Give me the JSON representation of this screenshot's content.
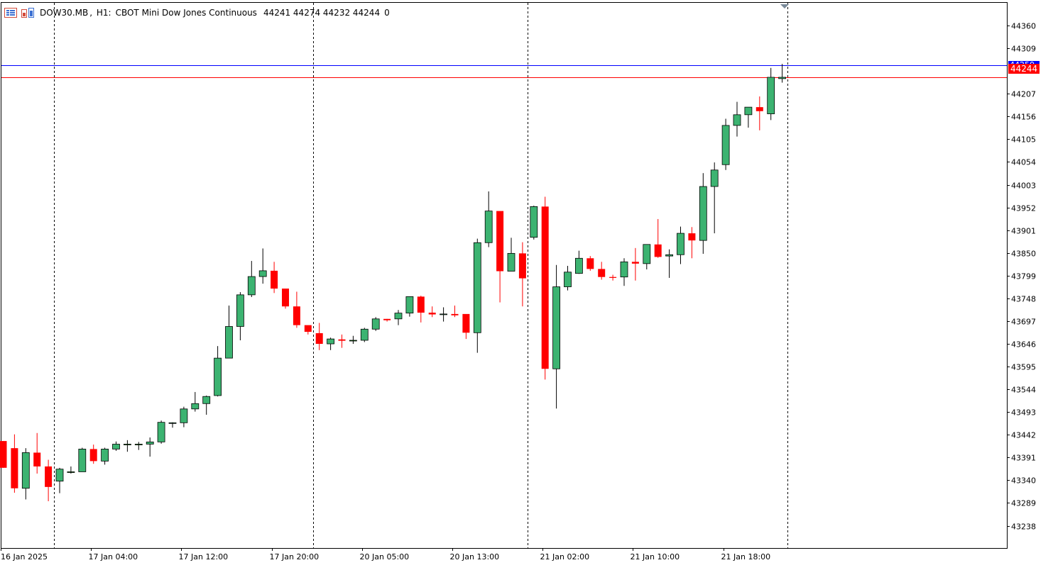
{
  "header": {
    "symbol": "DOW30.MB",
    "timeframe": "H1:",
    "description": "CBOT Mini Dow Jones Continuous",
    "ohlc": "44241 44274 44232 44244",
    "volume": "0",
    "icons": [
      "chart-list-icon",
      "one-click-trading-icon"
    ]
  },
  "colors": {
    "up": "#3cb371",
    "down": "#ff0000",
    "ask_line": "#0000ff",
    "bid_line": "#ff0000",
    "price_label_bg": "#ff0000",
    "grid": "#000000",
    "doji": "#00cc00"
  },
  "chart_data": {
    "type": "candlestick",
    "symbol": "DOW30.MB",
    "timeframe": "H1",
    "ylim": [
      43188,
      44411
    ],
    "y_ticks": [
      "44360",
      "44309",
      "44207",
      "44156",
      "44105",
      "44054",
      "44003",
      "43952",
      "43901",
      "43850",
      "43799",
      "43748",
      "43697",
      "43646",
      "43595",
      "43544",
      "43493",
      "43442",
      "43391",
      "43340",
      "43289",
      "43238"
    ],
    "x_ticks": [
      "16 Jan 2025",
      "17 Jan 04:00",
      "17 Jan 12:00",
      "17 Jan 20:00",
      "20 Jan 05:00",
      "20 Jan 13:00",
      "21 Jan 02:00",
      "21 Jan 10:00",
      "21 Jan 18:00"
    ],
    "current_price": "44244",
    "ask_price": "44250",
    "bid_price": 44244,
    "session_separators": [
      4.5,
      27.5,
      46.5,
      69.5
    ],
    "candles": [
      {
        "o": 43428,
        "h": 43428,
        "l": 43368,
        "c": 43368
      },
      {
        "o": 43412,
        "h": 43443,
        "l": 43312,
        "c": 43322
      },
      {
        "o": 43322,
        "h": 43412,
        "l": 43297,
        "c": 43402
      },
      {
        "o": 43402,
        "h": 43446,
        "l": 43355,
        "c": 43371
      },
      {
        "o": 43371,
        "h": 43386,
        "l": 43293,
        "c": 43325
      },
      {
        "o": 43338,
        "h": 43368,
        "l": 43311,
        "c": 43365
      },
      {
        "o": 43359,
        "h": 43371,
        "l": 43355,
        "c": 43359
      },
      {
        "o": 43359,
        "h": 43413,
        "l": 43359,
        "c": 43410
      },
      {
        "o": 43410,
        "h": 43420,
        "l": 43377,
        "c": 43383
      },
      {
        "o": 43383,
        "h": 43413,
        "l": 43375,
        "c": 43410
      },
      {
        "o": 43410,
        "h": 43427,
        "l": 43406,
        "c": 43421
      },
      {
        "o": 43421,
        "h": 43430,
        "l": 43404,
        "c": 43421
      },
      {
        "o": 43421,
        "h": 43426,
        "l": 43408,
        "c": 43421
      },
      {
        "o": 43421,
        "h": 43436,
        "l": 43393,
        "c": 43426
      },
      {
        "o": 43426,
        "h": 43474,
        "l": 43422,
        "c": 43470
      },
      {
        "o": 43468,
        "h": 43470,
        "l": 43458,
        "c": 43469
      },
      {
        "o": 43469,
        "h": 43505,
        "l": 43459,
        "c": 43500
      },
      {
        "o": 43500,
        "h": 43538,
        "l": 43494,
        "c": 43512
      },
      {
        "o": 43512,
        "h": 43530,
        "l": 43487,
        "c": 43528
      },
      {
        "o": 43530,
        "h": 43641,
        "l": 43528,
        "c": 43614
      },
      {
        "o": 43614,
        "h": 43732,
        "l": 43614,
        "c": 43685
      },
      {
        "o": 43685,
        "h": 43762,
        "l": 43654,
        "c": 43756
      },
      {
        "o": 43756,
        "h": 43832,
        "l": 43751,
        "c": 43797
      },
      {
        "o": 43797,
        "h": 43860,
        "l": 43781,
        "c": 43810
      },
      {
        "o": 43810,
        "h": 43830,
        "l": 43760,
        "c": 43770
      },
      {
        "o": 43770,
        "h": 43768,
        "l": 43725,
        "c": 43730
      },
      {
        "o": 43730,
        "h": 43763,
        "l": 43682,
        "c": 43688
      },
      {
        "o": 43688,
        "h": 43683,
        "l": 43667,
        "c": 43673
      },
      {
        "o": 43670,
        "h": 43693,
        "l": 43632,
        "c": 43646
      },
      {
        "o": 43646,
        "h": 43660,
        "l": 43632,
        "c": 43657
      },
      {
        "o": 43656,
        "h": 43667,
        "l": 43637,
        "c": 43653
      },
      {
        "o": 43654,
        "h": 43664,
        "l": 43646,
        "c": 43654
      },
      {
        "o": 43654,
        "h": 43682,
        "l": 43650,
        "c": 43679
      },
      {
        "o": 43679,
        "h": 43706,
        "l": 43675,
        "c": 43702
      },
      {
        "o": 43702,
        "h": 43702,
        "l": 43696,
        "c": 43699
      },
      {
        "o": 43702,
        "h": 43722,
        "l": 43688,
        "c": 43715
      },
      {
        "o": 43715,
        "h": 43751,
        "l": 43707,
        "c": 43752
      },
      {
        "o": 43752,
        "h": 43754,
        "l": 43694,
        "c": 43716
      },
      {
        "o": 43716,
        "h": 43730,
        "l": 43706,
        "c": 43712
      },
      {
        "o": 43712,
        "h": 43728,
        "l": 43696,
        "c": 43713
      },
      {
        "o": 43713,
        "h": 43732,
        "l": 43706,
        "c": 43710
      },
      {
        "o": 43713,
        "h": 43710,
        "l": 43657,
        "c": 43671
      },
      {
        "o": 43671,
        "h": 43882,
        "l": 43626,
        "c": 43873
      },
      {
        "o": 43873,
        "h": 43988,
        "l": 43863,
        "c": 43944
      },
      {
        "o": 43944,
        "h": 43941,
        "l": 43739,
        "c": 43809
      },
      {
        "o": 43809,
        "h": 43884,
        "l": 43809,
        "c": 43849
      },
      {
        "o": 43849,
        "h": 43874,
        "l": 43730,
        "c": 43793
      },
      {
        "o": 43885,
        "h": 43956,
        "l": 43880,
        "c": 43954
      },
      {
        "o": 43954,
        "h": 43976,
        "l": 43566,
        "c": 43590
      },
      {
        "o": 43590,
        "h": 43823,
        "l": 43501,
        "c": 43774
      },
      {
        "o": 43774,
        "h": 43821,
        "l": 43766,
        "c": 43807
      },
      {
        "o": 43804,
        "h": 43855,
        "l": 43803,
        "c": 43838
      },
      {
        "o": 43838,
        "h": 43843,
        "l": 43810,
        "c": 43814
      },
      {
        "o": 43814,
        "h": 43830,
        "l": 43790,
        "c": 43796
      },
      {
        "o": 43796,
        "h": 43801,
        "l": 43788,
        "c": 43794
      },
      {
        "o": 43796,
        "h": 43838,
        "l": 43776,
        "c": 43830
      },
      {
        "o": 43830,
        "h": 43861,
        "l": 43788,
        "c": 43826
      },
      {
        "o": 43826,
        "h": 43868,
        "l": 43813,
        "c": 43869
      },
      {
        "o": 43869,
        "h": 43926,
        "l": 43839,
        "c": 43841
      },
      {
        "o": 43843,
        "h": 43858,
        "l": 43794,
        "c": 43846
      },
      {
        "o": 43846,
        "h": 43909,
        "l": 43825,
        "c": 43894
      },
      {
        "o": 43894,
        "h": 43908,
        "l": 43838,
        "c": 43878
      },
      {
        "o": 43878,
        "h": 44029,
        "l": 43848,
        "c": 43999
      },
      {
        "o": 43999,
        "h": 44053,
        "l": 43894,
        "c": 44036
      },
      {
        "o": 44048,
        "h": 44151,
        "l": 44036,
        "c": 44136
      },
      {
        "o": 44136,
        "h": 44189,
        "l": 44111,
        "c": 44160
      },
      {
        "o": 44160,
        "h": 44175,
        "l": 44131,
        "c": 44177
      },
      {
        "o": 44177,
        "h": 44201,
        "l": 44125,
        "c": 44168
      },
      {
        "o": 44162,
        "h": 44265,
        "l": 44148,
        "c": 44244
      },
      {
        "o": 44241,
        "h": 44274,
        "l": 44232,
        "c": 44244
      }
    ]
  }
}
